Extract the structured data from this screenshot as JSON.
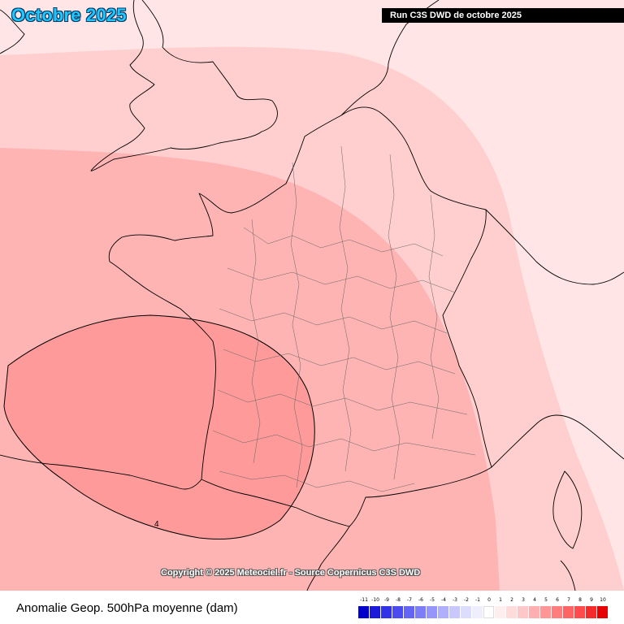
{
  "header": {
    "month_title": "Octobre 2025",
    "run_label": "Run C3S DWD de octobre 2025"
  },
  "map": {
    "contour_label": "4",
    "copyright": "Copyright © 2025 Meteociel.fr - Source Copernicus C3S DWD"
  },
  "footer": {
    "title": "Anomalie Geop. 500hPa moyenne (dam)"
  },
  "legend": {
    "labels": [
      "-11",
      "-10",
      "-9",
      "-8",
      "-7",
      "-6",
      "-5",
      "-4",
      "-3",
      "-2",
      "-1",
      "0",
      "1",
      "2",
      "3",
      "4",
      "5",
      "6",
      "7",
      "8",
      "9",
      "10"
    ],
    "colors": [
      "#0000c8",
      "#1a1ad8",
      "#3232e6",
      "#4b4bf0",
      "#6464f5",
      "#7d7df8",
      "#9696fa",
      "#afaffc",
      "#c8c8fd",
      "#dcdcfe",
      "#eeeeff",
      "#ffffff",
      "#ffeeee",
      "#ffdcdc",
      "#ffc8c8",
      "#ffafaf",
      "#ff9696",
      "#ff7d7d",
      "#ff6464",
      "#ff4b4b",
      "#f52a2a",
      "#e60000"
    ]
  },
  "palette": {
    "level_0": "#ffe5e5",
    "level_1": "#ffcfcf",
    "level_2": "#ffb4b4",
    "level_3": "#ff9a9a"
  }
}
